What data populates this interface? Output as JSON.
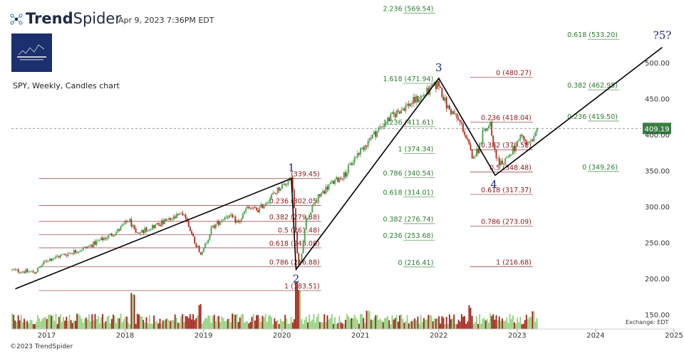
{
  "header": {
    "brand_bold": "Trend",
    "brand_thin": "Spider",
    "timestamp": "Apr 9, 2023 7:36PM EDT",
    "symbol_info": "SPY, Weekly, Candles chart",
    "copyright": "©2023 TrendSpider",
    "exchange": "Exchange: EDT"
  },
  "colors": {
    "up": "#3fa046",
    "down": "#b2241c",
    "vol_up": "#8fd07a",
    "vol_down": "#a01d14",
    "fib_red": "#8b1a1a",
    "fib_green": "#2e7d32",
    "wave_label": "#1a237e",
    "price_tag": "#3a7d44"
  },
  "chart_data": {
    "type": "candlestick",
    "symbol": "SPY",
    "timeframe": "Weekly",
    "x_range": [
      2016.55,
      2025.0
    ],
    "y_range": [
      130,
      580
    ],
    "x_ticks": [
      {
        "v": 2017,
        "label": "2017"
      },
      {
        "v": 2018,
        "label": "2018"
      },
      {
        "v": 2019,
        "label": "2019"
      },
      {
        "v": 2020,
        "label": "2020"
      },
      {
        "v": 2021,
        "label": "2021"
      },
      {
        "v": 2022,
        "label": "2022"
      },
      {
        "v": 2023,
        "label": "2023"
      },
      {
        "v": 2024,
        "label": "2024"
      },
      {
        "v": 2025,
        "label": "2025"
      }
    ],
    "y_ticks": [
      {
        "v": 500,
        "label": "500.00"
      },
      {
        "v": 450,
        "label": "450.00"
      },
      {
        "v": 400,
        "label": "400.00"
      },
      {
        "v": 350,
        "label": "350.00"
      },
      {
        "v": 300,
        "label": "300.00"
      },
      {
        "v": 250,
        "label": "250.00"
      },
      {
        "v": 200,
        "label": "200.00"
      },
      {
        "v": 150,
        "label": "150.00"
      }
    ],
    "last_price": {
      "v": 409.19,
      "label": "409.19"
    },
    "price_path": [
      [
        2016.55,
        212
      ],
      [
        2016.85,
        209
      ],
      [
        2017.0,
        226
      ],
      [
        2017.5,
        243
      ],
      [
        2017.9,
        266
      ],
      [
        2018.05,
        282
      ],
      [
        2018.15,
        262
      ],
      [
        2018.3,
        271
      ],
      [
        2018.6,
        283
      ],
      [
        2018.75,
        291
      ],
      [
        2018.9,
        248
      ],
      [
        2018.98,
        234
      ],
      [
        2019.1,
        270
      ],
      [
        2019.3,
        289
      ],
      [
        2019.45,
        278
      ],
      [
        2019.55,
        298
      ],
      [
        2019.7,
        296
      ],
      [
        2019.85,
        313
      ],
      [
        2020.0,
        330
      ],
      [
        2020.13,
        339
      ],
      [
        2020.2,
        225
      ],
      [
        2020.23,
        218
      ],
      [
        2020.3,
        280
      ],
      [
        2020.45,
        312
      ],
      [
        2020.6,
        330
      ],
      [
        2020.8,
        345
      ],
      [
        2020.95,
        372
      ],
      [
        2021.1,
        392
      ],
      [
        2021.3,
        416
      ],
      [
        2021.5,
        435
      ],
      [
        2021.65,
        445
      ],
      [
        2021.8,
        455
      ],
      [
        2021.95,
        468
      ],
      [
        2022.0,
        472
      ],
      [
        2022.1,
        440
      ],
      [
        2022.2,
        428
      ],
      [
        2022.3,
        412
      ],
      [
        2022.42,
        372
      ],
      [
        2022.5,
        378
      ],
      [
        2022.58,
        410
      ],
      [
        2022.65,
        418
      ],
      [
        2022.72,
        375
      ],
      [
        2022.78,
        358
      ],
      [
        2022.85,
        366
      ],
      [
        2022.95,
        380
      ],
      [
        2023.05,
        396
      ],
      [
        2023.12,
        386
      ],
      [
        2023.2,
        392
      ],
      [
        2023.27,
        409
      ]
    ],
    "volume_scale_max": 100,
    "volume_spikes": [
      {
        "x": 2018.1,
        "v": 75
      },
      {
        "x": 2018.95,
        "v": 55
      },
      {
        "x": 2020.18,
        "v": 100
      },
      {
        "x": 2020.22,
        "v": 85
      },
      {
        "x": 2021.1,
        "v": 40
      },
      {
        "x": 2022.4,
        "v": 50
      },
      {
        "x": 2023.2,
        "v": 38
      }
    ],
    "waves": [
      {
        "x": 2016.6,
        "y": 186
      },
      {
        "x": 2020.12,
        "y": 339.45,
        "label": "1"
      },
      {
        "x": 2020.18,
        "y": 213,
        "label": "2"
      },
      {
        "x": 2022.0,
        "y": 479,
        "label": "3"
      },
      {
        "x": 2022.72,
        "y": 344,
        "label": "4"
      },
      {
        "x": 2024.85,
        "y": 522,
        "label": "?5?"
      }
    ],
    "fib_sets": [
      {
        "color": "red",
        "x0": 2016.9,
        "x1": 2020.5,
        "levels": [
          {
            "y": 339.45,
            "label": "(339.45)"
          },
          {
            "y": 302.05,
            "label": "0.236 (302.05)"
          },
          {
            "y": 279.88,
            "label": "0.382 (279.88)"
          },
          {
            "y": 261.48,
            "label": "0.5 (261.48)"
          },
          {
            "y": 243.08,
            "label": "0.618 (243.08)"
          },
          {
            "y": 216.88,
            "label": "0.786 (216.88)"
          },
          {
            "y": 183.51,
            "label": "1 (183.51)"
          }
        ]
      },
      {
        "color": "green",
        "x0": 2021.55,
        "x1": 2021.95,
        "levels": [
          {
            "y": 569.54,
            "label": "2.236 (569.54)"
          },
          {
            "y": 471.94,
            "label": "1.618 (471.94)"
          },
          {
            "y": 411.61,
            "label": "1.236 (411.61)"
          },
          {
            "y": 374.34,
            "label": "1 (374.34)"
          },
          {
            "y": 340.54,
            "label": "0.786 (340.54)"
          },
          {
            "y": 314.01,
            "label": "0.618 (314.01)"
          },
          {
            "y": 276.74,
            "label": "0.382 (276.74)"
          },
          {
            "y": 253.68,
            "label": "0.236 (253.68)"
          },
          {
            "y": 216.41,
            "label": "0 (216.41)"
          }
        ]
      },
      {
        "color": "red",
        "x0": 2022.4,
        "x1": 2023.2,
        "levels": [
          {
            "y": 480.27,
            "label": "0 (480.27)"
          },
          {
            "y": 418.04,
            "label": "0.236 (418.04)"
          },
          {
            "y": 379.58,
            "label": "0.382 (379.58)"
          },
          {
            "y": 348.48,
            "label": "0.5 (348.48)"
          },
          {
            "y": 317.37,
            "label": "0.618 (317.37)"
          },
          {
            "y": 273.09,
            "label": "0.786 (273.09)"
          },
          {
            "y": 216.68,
            "label": "1 (216.68)"
          }
        ]
      },
      {
        "color": "green",
        "x0": 2023.9,
        "x1": 2024.3,
        "levels": [
          {
            "y": 533.2,
            "label": "0.618 (533.20)"
          },
          {
            "y": 462.95,
            "label": "0.382 (462.95)"
          },
          {
            "y": 419.5,
            "label": "0.236 (419.50)"
          },
          {
            "y": 349.26,
            "label": "0 (349.26)"
          }
        ]
      }
    ]
  }
}
